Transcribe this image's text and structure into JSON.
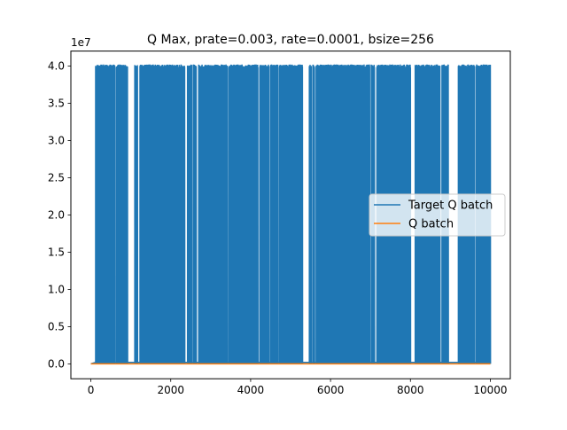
{
  "chart_data": {
    "type": "line",
    "title": "Q Max, prate=0.003, rate=0.0001, bsize=256",
    "xlabel": "",
    "ylabel": "",
    "y_offset_label": "1e7",
    "xlim": [
      -500,
      10500
    ],
    "ylim": [
      -2000000,
      42000000
    ],
    "grid": false,
    "legend_placement": "center-right",
    "x_ticks": [
      0,
      2000,
      4000,
      6000,
      8000,
      10000
    ],
    "x_tick_labels": [
      "0",
      "2000",
      "4000",
      "6000",
      "8000",
      "10000"
    ],
    "y_ticks": [
      0,
      5000000,
      10000000,
      15000000,
      20000000,
      25000000,
      30000000,
      35000000,
      40000000
    ],
    "y_tick_labels": [
      "0.0",
      "0.5",
      "1.0",
      "1.5",
      "2.0",
      "2.5",
      "3.0",
      "3.5",
      "4.0"
    ],
    "series": [
      {
        "name": "Target Q batch",
        "color": "#1f77b4",
        "description_low": 0,
        "peak_value": 40000000,
        "x_start": 0,
        "x_end": 10000,
        "high_activity_intervals": [
          [
            120,
            600
          ],
          [
            640,
            920
          ],
          [
            1100,
            1170
          ],
          [
            1230,
            2180
          ],
          [
            2210,
            2280
          ],
          [
            2300,
            2350
          ],
          [
            2420,
            2530
          ],
          [
            2570,
            2640
          ],
          [
            2700,
            3420
          ],
          [
            3460,
            4180
          ],
          [
            4230,
            4460
          ],
          [
            4500,
            4680
          ],
          [
            4720,
            5300
          ],
          [
            5470,
            5520
          ],
          [
            5560,
            5600
          ],
          [
            5640,
            6980
          ],
          [
            7020,
            7100
          ],
          [
            7160,
            8000
          ],
          [
            8120,
            8740
          ],
          [
            8790,
            8950
          ],
          [
            9200,
            9600
          ],
          [
            9640,
            10000
          ]
        ]
      },
      {
        "name": "Q batch",
        "color": "#ff7f0e",
        "value": 0,
        "x_start": 0,
        "x_end": 10000
      }
    ]
  }
}
